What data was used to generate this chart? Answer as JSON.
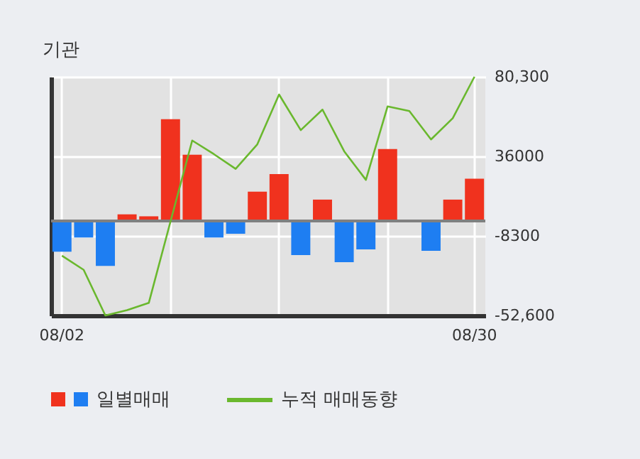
{
  "chart_data": {
    "type": "bar",
    "title": "기관",
    "categories": [
      "08/02",
      null,
      null,
      null,
      null,
      null,
      null,
      null,
      null,
      null,
      null,
      null,
      null,
      null,
      null,
      null,
      null,
      null,
      null,
      "08/30"
    ],
    "series": [
      {
        "name": "일별매매",
        "values": [
          -17100,
          -9200,
          -25000,
          3700,
          2600,
          56700,
          36900,
          -9200,
          -7100,
          16300,
          26100,
          -19000,
          11900,
          -22900,
          -15800,
          40100,
          0,
          -16600,
          11900,
          23500
        ],
        "colors": [
          "#1e7ef2",
          "#1e7ef2",
          "#1e7ef2",
          "#f0321e",
          "#f0321e",
          "#f0321e",
          "#f0321e",
          "#1e7ef2",
          "#1e7ef2",
          "#f0321e",
          "#f0321e",
          "#1e7ef2",
          "#f0321e",
          "#1e7ef2",
          "#1e7ef2",
          "#f0321e",
          "#f0321e",
          "#1e7ef2",
          "#f0321e",
          "#f0321e"
        ]
      },
      {
        "name": "누적 매매동향",
        "type": "line",
        "color": "#6ab82e",
        "values": [
          -19300,
          -27200,
          -52600,
          -49600,
          -45600,
          -300,
          44800,
          37200,
          29000,
          42700,
          70400,
          50600,
          62000,
          38800,
          22900,
          63800,
          61200,
          45400,
          57200,
          80300
        ]
      }
    ],
    "ylim": [
      -52600,
      80300
    ],
    "yticks": [
      {
        "value": 80300,
        "label": "80,300"
      },
      36000,
      -8300,
      {
        "value": -52600,
        "label": "-52,600"
      }
    ],
    "ref_lines": [
      {
        "axis": "y",
        "value": 0,
        "color": "#808080"
      }
    ],
    "grid": true,
    "legend": "bottom"
  }
}
